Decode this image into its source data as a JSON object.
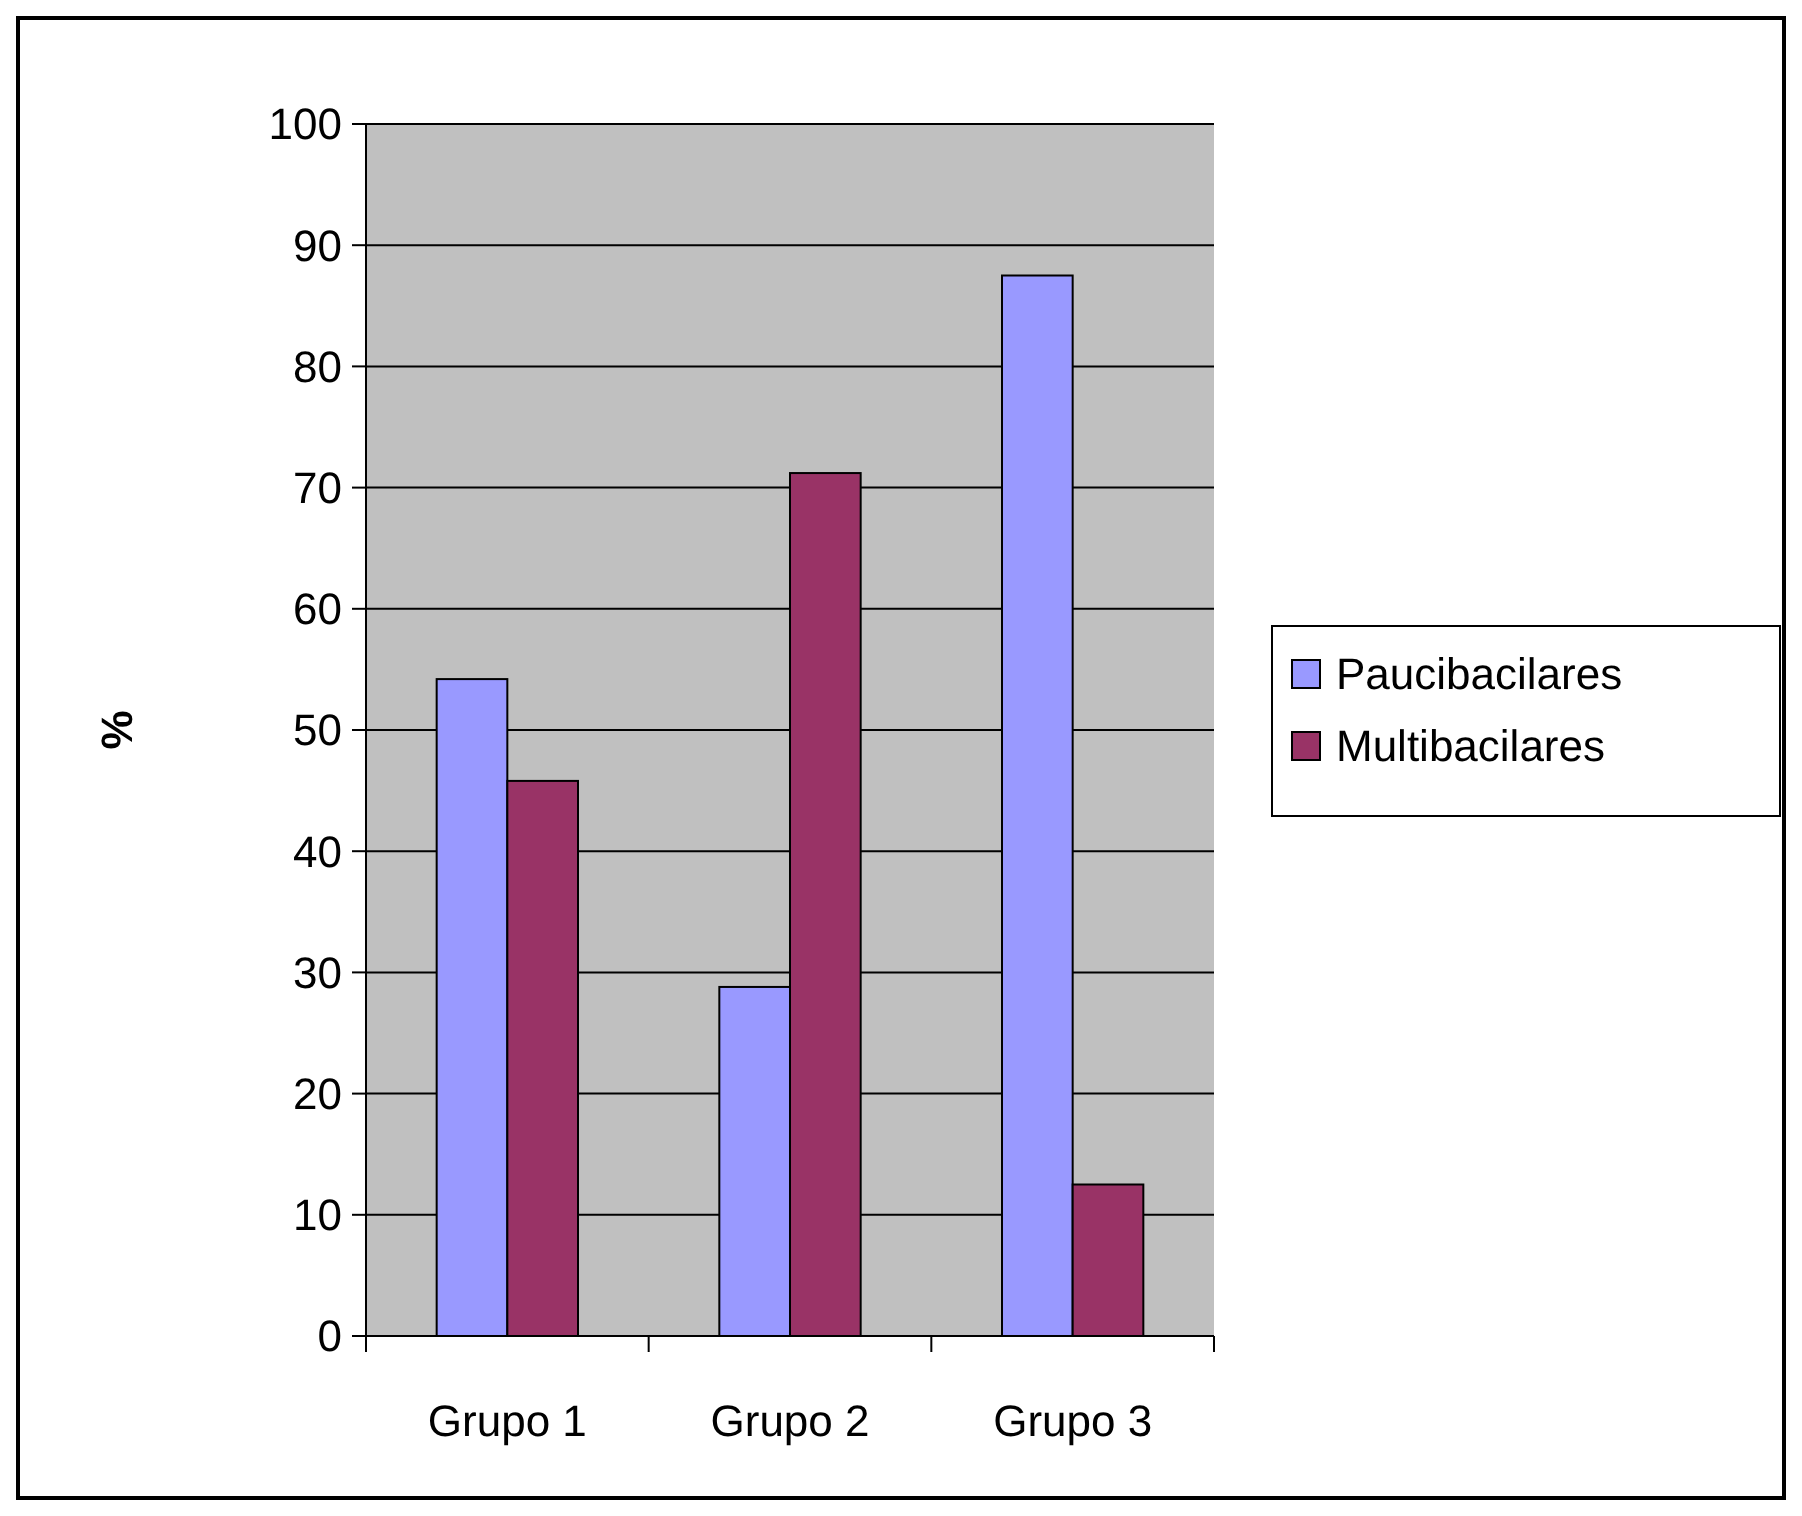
{
  "chart_data": {
    "type": "bar",
    "ylabel": "%",
    "categories": [
      "Grupo 1",
      "Grupo 2",
      "Grupo 3"
    ],
    "series": [
      {
        "name": "Paucibacilares",
        "color": "#9999ff",
        "values": [
          54.2,
          28.8,
          87.5
        ]
      },
      {
        "name": "Multibacilares",
        "color": "#993366",
        "values": [
          45.8,
          71.2,
          12.5
        ]
      }
    ],
    "ylim": [
      0,
      100
    ],
    "yticks": [
      0,
      10,
      20,
      30,
      40,
      50,
      60,
      70,
      80,
      90,
      100
    ],
    "grid": "y",
    "legend": "right"
  }
}
